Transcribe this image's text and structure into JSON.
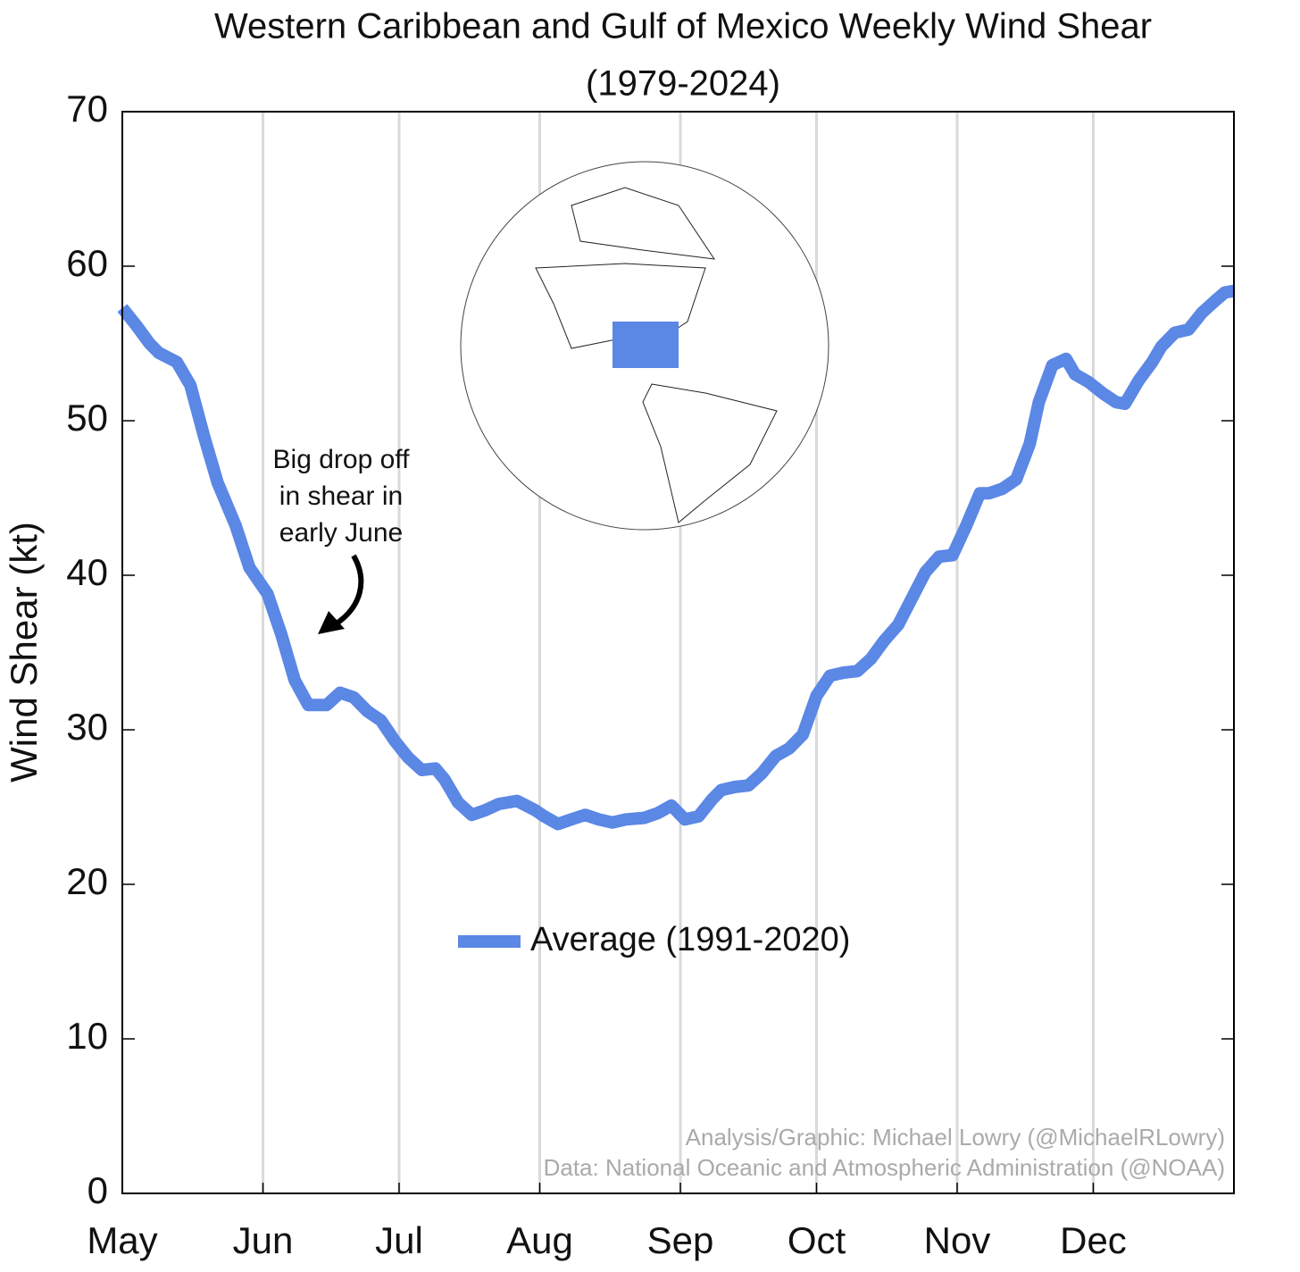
{
  "chart_data": {
    "type": "line",
    "title": "Western Caribbean and Gulf of Mexico Weekly Wind Shear",
    "subtitle": "(1979-2024)",
    "y_label": "Wind Shear (kt)",
    "annotation": [
      "Big drop off",
      "in shear in",
      "early June"
    ],
    "credits": [
      "Analysis/Graphic: Michael Lowry (@MichaelRLowry)",
      "Data: National Oceanic and Atmospheric Administration (@NOAA)"
    ],
    "x": [
      0,
      3,
      6,
      8,
      12,
      15,
      18,
      21,
      25,
      28,
      32,
      35,
      38,
      41,
      45,
      48,
      51,
      54,
      57,
      60,
      63,
      66,
      69,
      71,
      74,
      77,
      80,
      83,
      87,
      91,
      93,
      96,
      99,
      102,
      105,
      108,
      111,
      115,
      118,
      121,
      124,
      127,
      130,
      132,
      135,
      138,
      141,
      144,
      147,
      150,
      153,
      156,
      159,
      162,
      165,
      168,
      171,
      174,
      177,
      180,
      183,
      186,
      189,
      191,
      194,
      197,
      200,
      202,
      205,
      208,
      210,
      213,
      216,
      219,
      221,
      224,
      227,
      229,
      232,
      235,
      238,
      241,
      243,
      245
    ],
    "series": [
      {
        "name": "Average (1991-2020)",
        "color": "#5b87e5",
        "values": [
          57.3,
          56.2,
          55.0,
          54.4,
          53.8,
          52.3,
          49.0,
          46.0,
          43.2,
          40.5,
          38.8,
          36.2,
          33.2,
          31.6,
          31.6,
          32.4,
          32.1,
          31.2,
          30.6,
          29.3,
          28.2,
          27.4,
          27.5,
          26.8,
          25.3,
          24.5,
          24.8,
          25.2,
          25.4,
          24.8,
          24.4,
          23.9,
          24.2,
          24.5,
          24.2,
          24.0,
          24.2,
          24.3,
          24.6,
          25.1,
          24.2,
          24.4,
          25.5,
          26.1,
          26.3,
          26.4,
          27.2,
          28.3,
          28.8,
          29.7,
          32.2,
          33.5,
          33.7,
          33.8,
          34.6,
          35.8,
          36.8,
          38.5,
          40.2,
          41.2,
          41.3,
          43.2,
          45.3,
          45.3,
          45.6,
          46.2,
          48.5,
          51.2,
          53.6,
          54.0,
          53.0,
          52.5,
          51.8,
          51.2,
          51.1,
          52.6,
          53.8,
          54.8,
          55.7,
          55.9,
          57.0,
          57.8,
          58.3,
          58.4
        ]
      }
    ],
    "xlim": [
      0,
      245
    ],
    "xticks": [
      {
        "value": 0,
        "label": "May"
      },
      {
        "value": 31,
        "label": "Jun"
      },
      {
        "value": 61,
        "label": "Jul"
      },
      {
        "value": 92,
        "label": "Aug"
      },
      {
        "value": 123,
        "label": "Sep"
      },
      {
        "value": 153,
        "label": "Oct"
      },
      {
        "value": 184,
        "label": "Nov"
      },
      {
        "value": 214,
        "label": "Dec"
      }
    ],
    "ylim": [
      0,
      70
    ],
    "yticks": [
      0,
      10,
      20,
      30,
      40,
      50,
      60,
      70
    ],
    "grid": true
  }
}
